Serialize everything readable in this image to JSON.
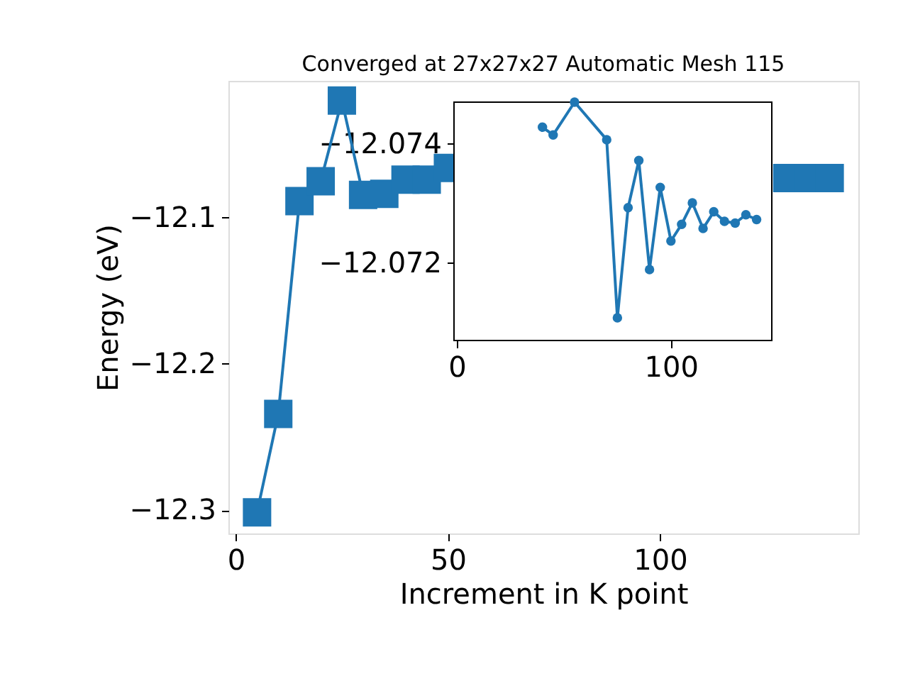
{
  "chart_data": [
    {
      "type": "line",
      "title": "Converged at 27x27x27 Automatic Mesh 115",
      "xlabel": "Increment in K point",
      "ylabel": "Energy (eV)",
      "x": [
        5,
        10,
        15,
        20,
        25,
        30,
        35,
        40,
        45,
        50,
        55,
        60,
        65,
        70,
        75,
        80,
        85,
        90,
        95,
        100,
        105,
        110,
        115,
        120,
        125,
        130,
        135,
        140
      ],
      "series": [
        {
          "color": "#1f77b4",
          "values": [
            -12.3016,
            -12.2343,
            -12.0887,
            -12.0751,
            -12.02,
            -12.0845,
            -12.0838,
            -12.0741,
            -12.0741,
            -12.066,
            null,
            null,
            null,
            null,
            null,
            null,
            null,
            null,
            null,
            null,
            null,
            null,
            null,
            null,
            null,
            -12.073,
            -12.073,
            -12.073
          ]
        }
      ],
      "xlim": [
        -1.75,
        146.75
      ],
      "ylim": [
        -12.316,
        -12.0065
      ],
      "xticks": [
        0,
        50,
        100
      ],
      "yticks": [
        -12.3,
        -12.2,
        -12.1
      ],
      "marker": "square",
      "grid": false
    },
    {
      "type": "line",
      "x": [
        40,
        45,
        55,
        70,
        75,
        80,
        85,
        90,
        95,
        100,
        105,
        110,
        115,
        120,
        125,
        130,
        135,
        140
      ],
      "series": [
        {
          "color": "#1f77b4",
          "values": [
            -12.07428,
            -12.07415,
            -12.0747,
            -12.07407,
            -12.07108,
            -12.07293,
            -12.07372,
            -12.07189,
            -12.07327,
            -12.07237,
            -12.07265,
            -12.07301,
            -12.07258,
            -12.07286,
            -12.0727,
            -12.07267,
            -12.07281,
            -12.07273
          ]
        }
      ],
      "xlim": [
        -1.3,
        147.1
      ],
      "ylim": [
        -12.0707,
        -12.0747
      ],
      "xticks": [
        0,
        100
      ],
      "yticks": [
        -12.074,
        -12.072
      ],
      "marker": "circle",
      "grid": false
    }
  ]
}
